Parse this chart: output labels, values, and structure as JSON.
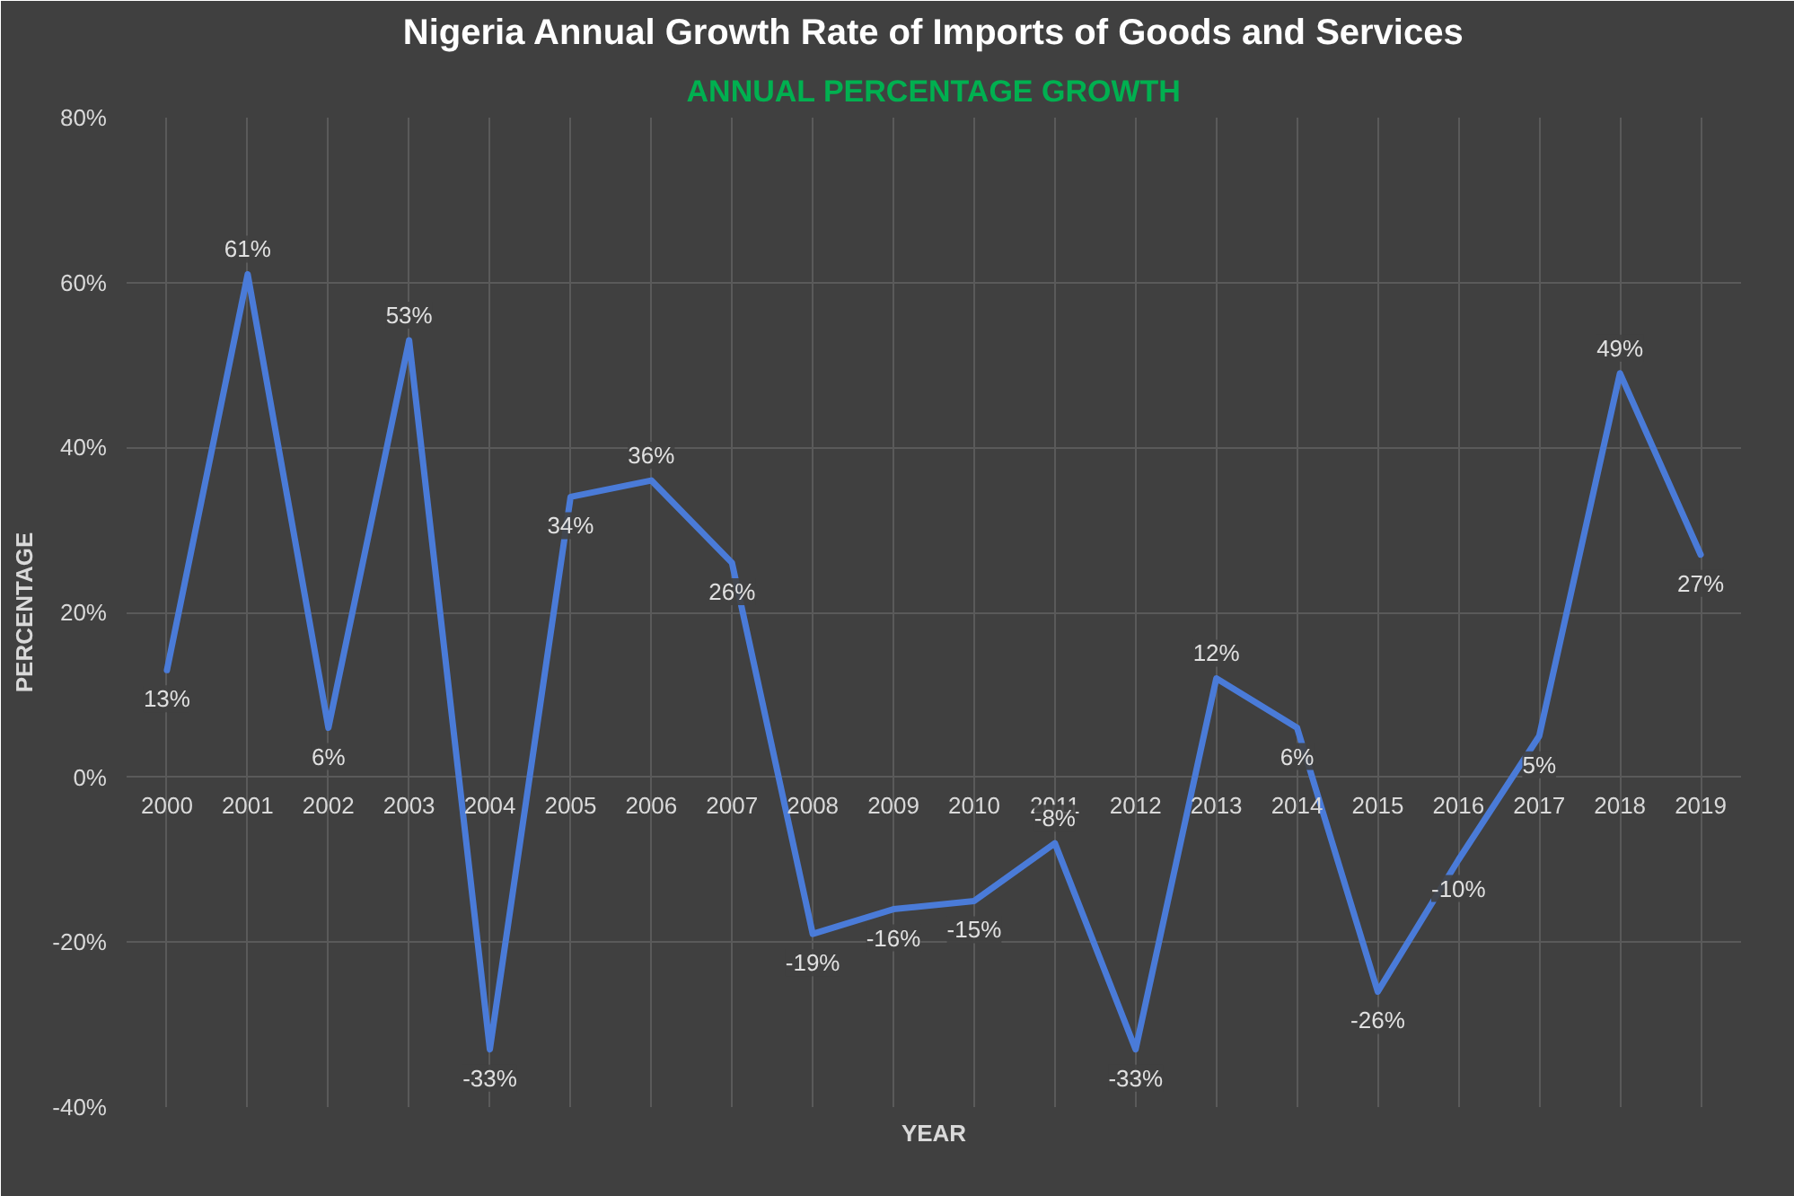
{
  "chart_data": {
    "type": "line",
    "title": "Nigeria Annual Growth Rate of Imports of Goods and Services",
    "subtitle": "ANNUAL PERCENTAGE GROWTH",
    "xlabel": "YEAR",
    "ylabel": "PERCENTAGE",
    "categories": [
      "2000",
      "2001",
      "2002",
      "2003",
      "2004",
      "2005",
      "2006",
      "2007",
      "2008",
      "2009",
      "2010",
      "2011",
      "2012",
      "2013",
      "2014",
      "2015",
      "2016",
      "2017",
      "2018",
      "2019"
    ],
    "series": [
      {
        "color": "#4a7bd8",
        "values": [
          13,
          61,
          6,
          53,
          -33,
          34,
          36,
          26,
          -19,
          -16,
          -15,
          -8,
          -33,
          12,
          6,
          -26,
          -10,
          5,
          49,
          27
        ],
        "value_labels": [
          "13%",
          "61%",
          "6%",
          "53%",
          "-33%",
          "34%",
          "36%",
          "26%",
          "-19%",
          "-16%",
          "-15%",
          "-8%",
          "-33%",
          "12%",
          "6%",
          "-26%",
          "-10%",
          "5%",
          "49%",
          "27%"
        ]
      }
    ],
    "ylim": [
      -40,
      80
    ],
    "yticks": [
      {
        "value": -40,
        "label": "-40%"
      },
      {
        "value": -20,
        "label": "-20%"
      },
      {
        "value": 0,
        "label": "0%"
      },
      {
        "value": 20,
        "label": "20%"
      },
      {
        "value": 40,
        "label": "40%"
      },
      {
        "value": 60,
        "label": "60%"
      },
      {
        "value": 80,
        "label": "80%"
      }
    ],
    "grid": true,
    "marker": "none",
    "line_style": "solid"
  }
}
